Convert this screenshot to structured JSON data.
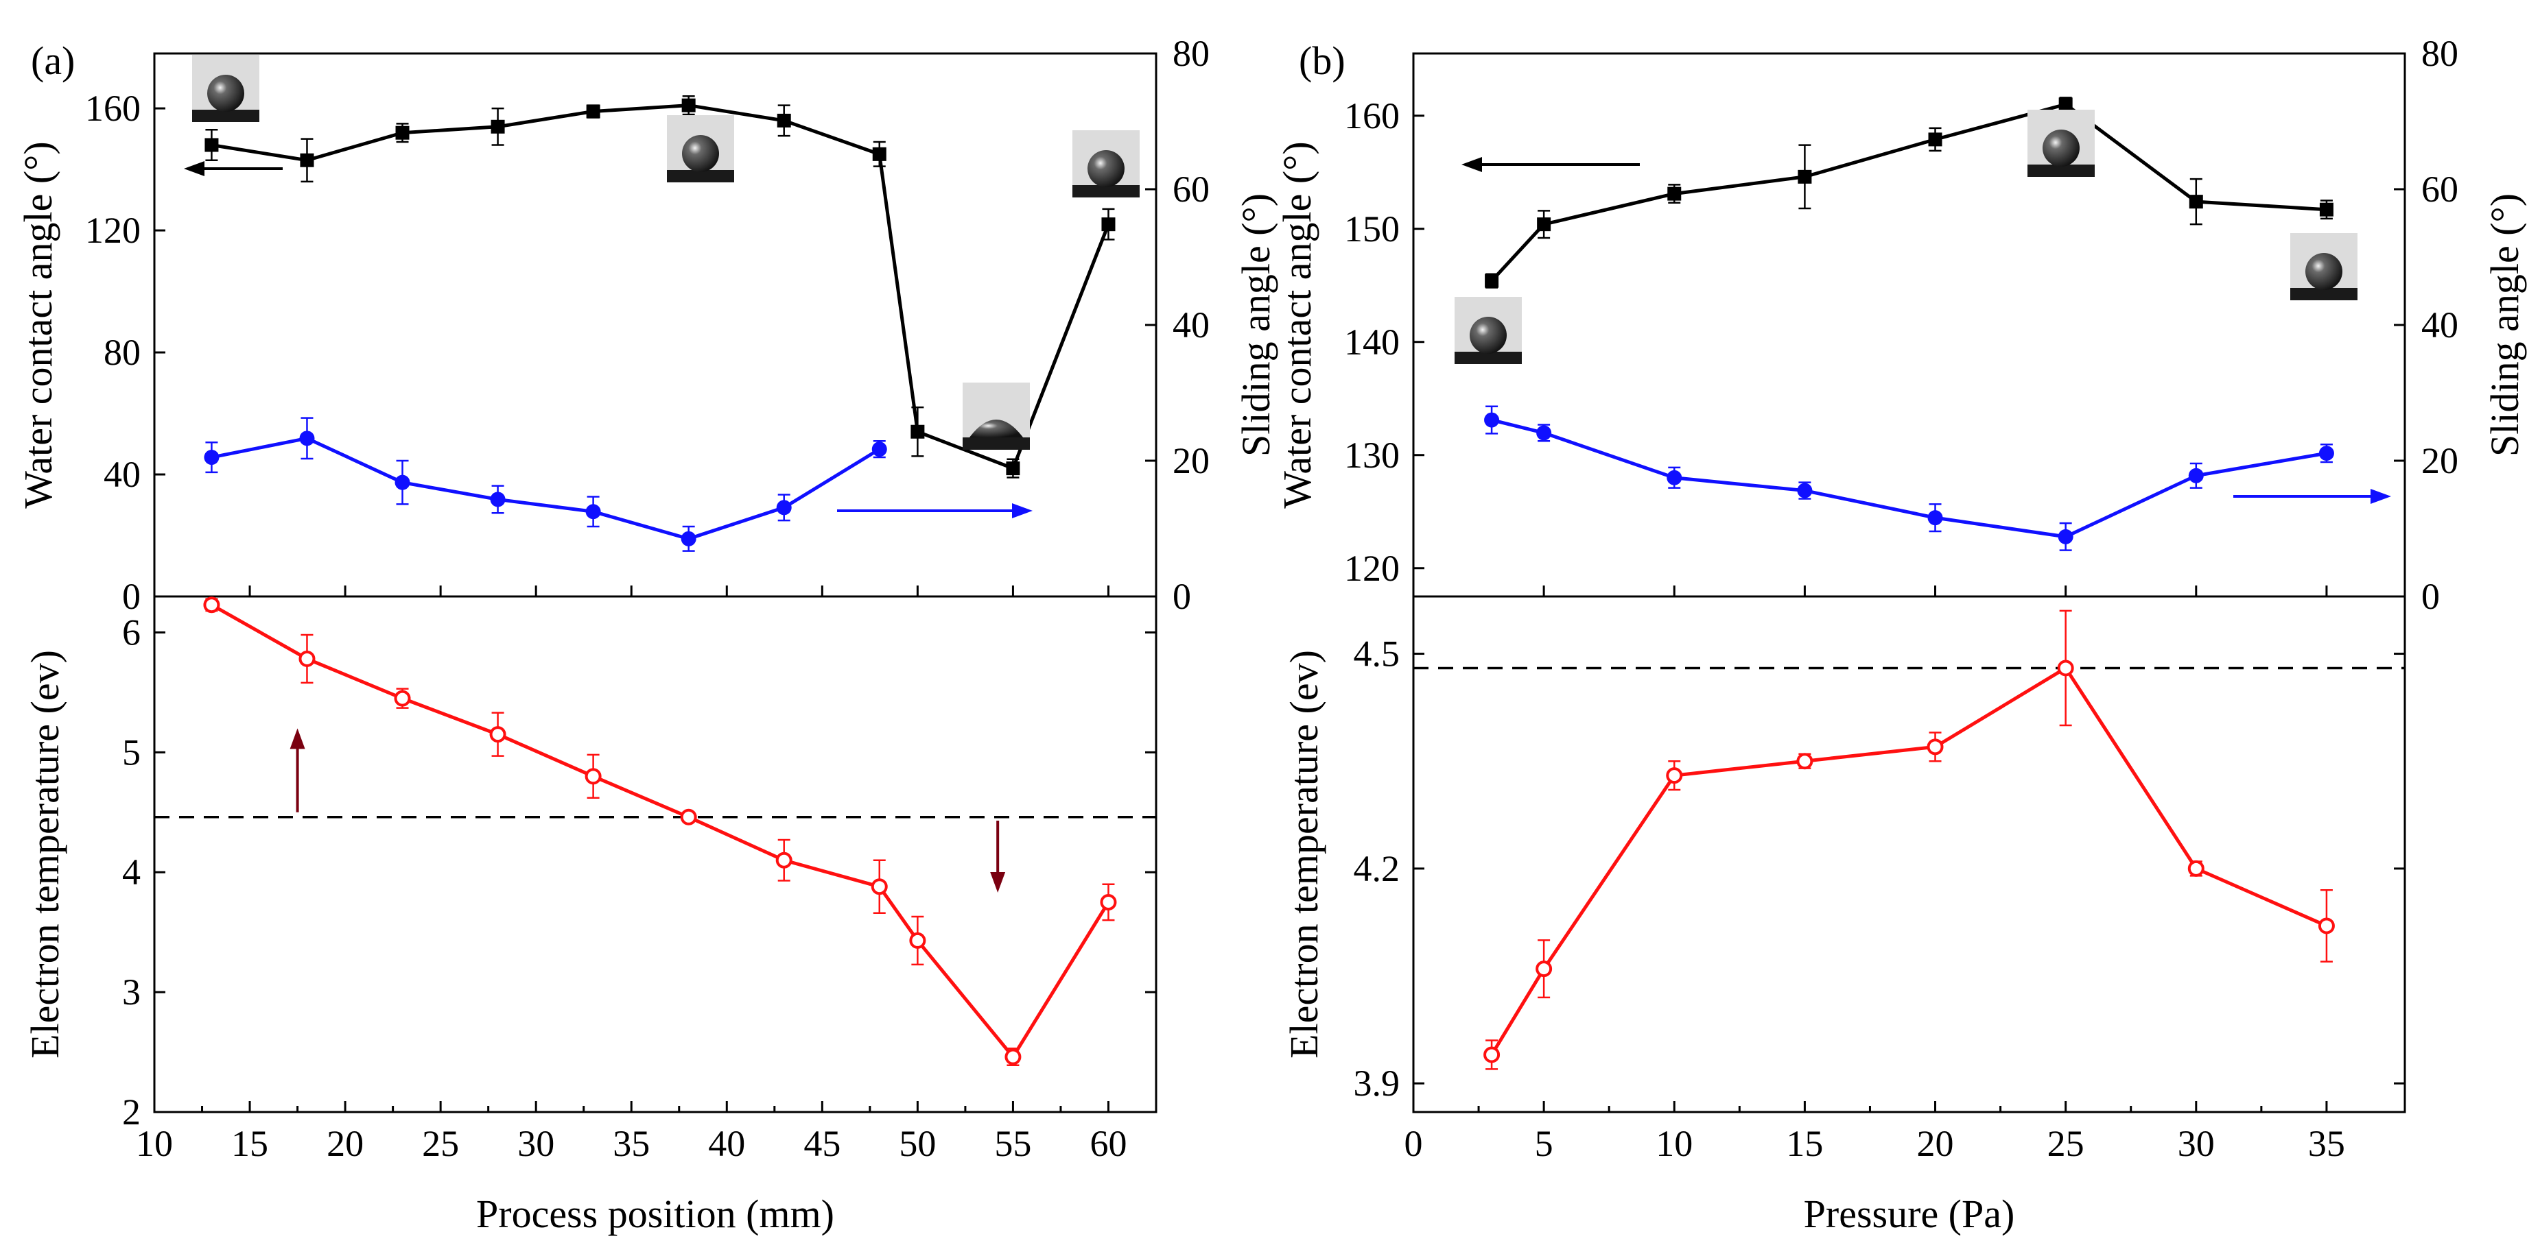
{
  "colors": {
    "wca": "#000000",
    "sliding": "#1010ff",
    "electron": "#ff1010",
    "arrow_dark": "#7a0010",
    "reference": "#000000"
  },
  "chart_data": [
    {
      "type": "line",
      "panel_label": "(a)",
      "xlabel": "Process position (mm)",
      "xlim": [
        10,
        62.5
      ],
      "x_ticks": [
        "10",
        "15",
        "20",
        "25",
        "30",
        "35",
        "40",
        "45",
        "50",
        "55",
        "60"
      ],
      "top": {
        "ylabel_left": "Water contact angle (°)",
        "ylabel_right": "Sliding angle (°)",
        "ylim_left": [
          0,
          178
        ],
        "ylim_right": [
          0,
          80
        ],
        "left_ticks": [
          "0",
          "40",
          "80",
          "120",
          "160"
        ],
        "right_ticks": [
          "0",
          "20",
          "40",
          "60",
          "80"
        ],
        "series": [
          {
            "axis": "left",
            "marker": "square",
            "x": [
              13,
              18,
              23,
              28,
              33,
              38,
              43,
              48,
              50,
              55,
              60
            ],
            "y": [
              148,
              143,
              152,
              154,
              159,
              161,
              156,
              145,
              54,
              42,
              122
            ],
            "err": [
              5,
              7,
              3,
              6,
              2,
              3,
              5,
              4,
              8,
              3,
              5
            ]
          },
          {
            "axis": "right",
            "marker": "circle",
            "x": [
              13,
              18,
              23,
              28,
              33,
              38,
              43,
              48
            ],
            "y": [
              20.5,
              23.3,
              16.8,
              14.3,
              12.5,
              8.5,
              13.1,
              21.7
            ],
            "err": [
              2.2,
              3.0,
              3.2,
              2.0,
              2.2,
              1.8,
              1.9,
              1.2
            ]
          }
        ],
        "direction_arrows": [
          {
            "axis": "left",
            "points_to": "left"
          },
          {
            "axis": "right",
            "points_to": "right"
          }
        ],
        "droplet_insets": [
          "contact angle 161°",
          "contact angle 148°",
          "contact angle 122°",
          "contact angle 42°"
        ]
      },
      "bottom": {
        "ylabel": "Electron temperature (ev)",
        "ylim": [
          2,
          6.3
        ],
        "y_ticks": [
          "2",
          "3",
          "4",
          "5",
          "6"
        ],
        "series": [
          {
            "marker": "open-circle",
            "x": [
              13,
              18,
              23,
              28,
              33,
              38,
              43,
              48,
              50,
              55,
              60
            ],
            "y": [
              6.23,
              5.78,
              5.45,
              5.15,
              4.8,
              4.46,
              4.1,
              3.88,
              3.43,
              2.46,
              3.75
            ],
            "err": [
              0.05,
              0.2,
              0.08,
              0.18,
              0.18,
              0.04,
              0.17,
              0.22,
              0.2,
              0.07,
              0.15
            ]
          }
        ],
        "reference_line": {
          "y": 4.46,
          "style": "dashed"
        },
        "vertical_arrows": [
          {
            "x": 17.5,
            "from_y": 4.5,
            "to_y": 5.2,
            "direction": "up"
          },
          {
            "x": 54.2,
            "from_y": 4.43,
            "to_y": 3.83,
            "direction": "down"
          }
        ]
      }
    },
    {
      "type": "line",
      "panel_label": "(b)",
      "xlabel": "Pressure (Pa)",
      "xlim": [
        0,
        38
      ],
      "x_ticks": [
        "0",
        "5",
        "10",
        "15",
        "20",
        "25",
        "30",
        "35"
      ],
      "top": {
        "ylabel_left": "Water contact angle (°)",
        "ylabel_right": "Sliding angle (°)",
        "ylim_left": [
          117.5,
          165.5
        ],
        "ylim_right": [
          0,
          80
        ],
        "left_ticks": [
          "120",
          "130",
          "140",
          "150",
          "160"
        ],
        "right_ticks": [
          "0",
          "20",
          "40",
          "60",
          "80"
        ],
        "series": [
          {
            "axis": "left",
            "marker": "square",
            "x": [
              3,
              5,
              10,
              15,
              20,
              25,
              30,
              35
            ],
            "y": [
              145.4,
              150.4,
              153.1,
              154.6,
              157.9,
              161.0,
              152.4,
              151.7
            ],
            "err": [
              0.6,
              1.2,
              0.8,
              2.8,
              1.0,
              0.6,
              2.0,
              0.8
            ]
          },
          {
            "axis": "right",
            "marker": "circle",
            "x": [
              3,
              5,
              10,
              15,
              20,
              25,
              30,
              35
            ],
            "y": [
              26.0,
              24.1,
              17.5,
              15.6,
              11.6,
              8.8,
              17.8,
              21.1
            ],
            "err": [
              2.0,
              1.2,
              1.5,
              1.2,
              2.0,
              2.0,
              1.8,
              1.3
            ]
          }
        ],
        "direction_arrows": [
          {
            "axis": "left",
            "points_to": "left"
          },
          {
            "axis": "right",
            "points_to": "right"
          }
        ],
        "droplet_insets": [
          "contact angle 145°",
          "contact angle 161°",
          "contact angle 152°"
        ]
      },
      "bottom": {
        "ylabel": "Electron temperature (ev)",
        "ylim": [
          3.86,
          4.58
        ],
        "y_ticks": [
          "3.9",
          "4.2",
          "4.5"
        ],
        "series": [
          {
            "marker": "open-circle",
            "x": [
              3,
              5,
              10,
              15,
              20,
              25,
              30,
              35
            ],
            "y": [
              3.94,
              4.06,
              4.33,
              4.35,
              4.37,
              4.48,
              4.2,
              4.12
            ],
            "err": [
              0.02,
              0.04,
              0.02,
              0.01,
              0.02,
              0.08,
              0.01,
              0.05
            ]
          }
        ],
        "reference_line": {
          "y": 4.48,
          "style": "dashed"
        }
      }
    }
  ]
}
